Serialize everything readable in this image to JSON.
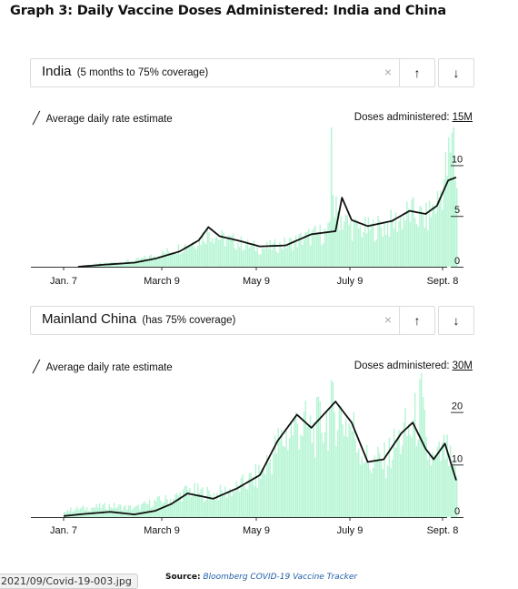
{
  "page_title": "Graph 3: Daily Vaccine Doses Administered: India and China",
  "controls": {
    "clear_icon": "×",
    "up_icon": "🡑",
    "down_icon": "🡓",
    "up_glyph": "↑",
    "down_glyph": "↓"
  },
  "colors": {
    "bar": "#b6f5d4",
    "line": "#111111",
    "axis": "#333333"
  },
  "panels": [
    {
      "country": "India",
      "note": "(5 months to 75% coverage)",
      "legend": "Average daily rate estimate",
      "doses_label": "Doses administered:",
      "doses_unit": "15M"
    },
    {
      "country": "Mainland China",
      "note": "(has 75% coverage)",
      "legend": "Average daily rate estimate",
      "doses_label": "Doses administered:",
      "doses_unit": "30M"
    }
  ],
  "chart_data": [
    {
      "type": "bar",
      "series": [
        {
          "name": "Doses administered",
          "kind": "bar"
        },
        {
          "name": "Average daily rate estimate",
          "kind": "line"
        }
      ],
      "x_ticks": [
        "Jan. 7",
        "March 9",
        "May 9",
        "July 9",
        "Sept. 8"
      ],
      "y_ticks": [
        "0",
        "5",
        "10"
      ],
      "ylim": [
        0,
        13
      ],
      "x_range": [
        "2021-01-07",
        "2021-09-08"
      ],
      "keypoints_line": [
        [
          "2021-01-16",
          0
        ],
        [
          "2021-02-01",
          0.2
        ],
        [
          "2021-02-20",
          0.4
        ],
        [
          "2021-03-05",
          0.8
        ],
        [
          "2021-03-20",
          1.5
        ],
        [
          "2021-04-01",
          2.6
        ],
        [
          "2021-04-07",
          3.9
        ],
        [
          "2021-04-14",
          3.0
        ],
        [
          "2021-04-25",
          2.6
        ],
        [
          "2021-05-09",
          2.0
        ],
        [
          "2021-05-25",
          2.1
        ],
        [
          "2021-06-10",
          3.2
        ],
        [
          "2021-06-25",
          3.5
        ],
        [
          "2021-06-29",
          6.8
        ],
        [
          "2021-07-05",
          4.6
        ],
        [
          "2021-07-15",
          4.0
        ],
        [
          "2021-07-30",
          4.5
        ],
        [
          "2021-08-10",
          5.5
        ],
        [
          "2021-08-20",
          5.2
        ],
        [
          "2021-08-27",
          6.0
        ],
        [
          "2021-09-03",
          8.5
        ],
        [
          "2021-09-08",
          8.8
        ]
      ],
      "keypoints_bars": [
        [
          "2021-01-16",
          0.1
        ],
        [
          "2021-02-01",
          0.4
        ],
        [
          "2021-02-20",
          0.7
        ],
        [
          "2021-03-05",
          1.3
        ],
        [
          "2021-03-20",
          2.2
        ],
        [
          "2021-04-01",
          3.2
        ],
        [
          "2021-04-07",
          4.2
        ],
        [
          "2021-04-14",
          3.3
        ],
        [
          "2021-04-25",
          2.8
        ],
        [
          "2021-05-09",
          2.1
        ],
        [
          "2021-05-25",
          2.6
        ],
        [
          "2021-06-10",
          3.6
        ],
        [
          "2021-06-21",
          4.0
        ],
        [
          "2021-06-22",
          13.7
        ],
        [
          "2021-06-24",
          6.5
        ],
        [
          "2021-07-05",
          4.5
        ],
        [
          "2021-07-15",
          4.3
        ],
        [
          "2021-07-30",
          5.0
        ],
        [
          "2021-08-10",
          6.2
        ],
        [
          "2021-08-20",
          5.5
        ],
        [
          "2021-08-27",
          7.5
        ],
        [
          "2021-09-06",
          14.0
        ],
        [
          "2021-09-08",
          8.5
        ]
      ]
    },
    {
      "type": "bar",
      "series": [
        {
          "name": "Doses administered",
          "kind": "bar"
        },
        {
          "name": "Average daily rate estimate",
          "kind": "line"
        }
      ],
      "x_ticks": [
        "Jan. 7",
        "March 9",
        "May 9",
        "July 9",
        "Sept. 8"
      ],
      "y_ticks": [
        "0",
        "10",
        "20"
      ],
      "ylim": [
        0,
        26
      ],
      "x_range": [
        "2021-01-07",
        "2021-09-08"
      ],
      "keypoints_line": [
        [
          "2021-01-07",
          0.2
        ],
        [
          "2021-01-20",
          0.6
        ],
        [
          "2021-02-05",
          1.0
        ],
        [
          "2021-02-20",
          0.5
        ],
        [
          "2021-03-05",
          1.2
        ],
        [
          "2021-03-15",
          2.5
        ],
        [
          "2021-03-25",
          4.5
        ],
        [
          "2021-04-10",
          3.5
        ],
        [
          "2021-04-25",
          5.5
        ],
        [
          "2021-05-09",
          8.0
        ],
        [
          "2021-05-20",
          14.5
        ],
        [
          "2021-06-01",
          19.5
        ],
        [
          "2021-06-10",
          17.0
        ],
        [
          "2021-06-25",
          22.0
        ],
        [
          "2021-07-05",
          18.0
        ],
        [
          "2021-07-15",
          10.5
        ],
        [
          "2021-07-25",
          11.0
        ],
        [
          "2021-08-05",
          16.0
        ],
        [
          "2021-08-12",
          18.0
        ],
        [
          "2021-08-20",
          13.0
        ],
        [
          "2021-08-25",
          11.0
        ],
        [
          "2021-09-01",
          14.0
        ],
        [
          "2021-09-08",
          7.0
        ]
      ],
      "keypoints_bars": [
        [
          "2021-01-07",
          1.5
        ],
        [
          "2021-01-20",
          2.0
        ],
        [
          "2021-02-05",
          2.5
        ],
        [
          "2021-02-20",
          2.0
        ],
        [
          "2021-03-05",
          3.5
        ],
        [
          "2021-03-15",
          4.0
        ],
        [
          "2021-03-25",
          6.0
        ],
        [
          "2021-04-10",
          5.0
        ],
        [
          "2021-04-25",
          6.5
        ],
        [
          "2021-05-09",
          9.5
        ],
        [
          "2021-05-20",
          16.0
        ],
        [
          "2021-06-01",
          21.0
        ],
        [
          "2021-06-10",
          19.0
        ],
        [
          "2021-06-25",
          24.0
        ],
        [
          "2021-07-05",
          20.0
        ],
        [
          "2021-07-15",
          12.0
        ],
        [
          "2021-07-25",
          12.5
        ],
        [
          "2021-08-05",
          18.0
        ],
        [
          "2021-08-12",
          20.0
        ],
        [
          "2021-08-17",
          25.5
        ],
        [
          "2021-08-20",
          15.0
        ],
        [
          "2021-08-25",
          12.0
        ],
        [
          "2021-09-01",
          15.0
        ],
        [
          "2021-09-08",
          8.0
        ]
      ]
    }
  ],
  "source": {
    "label": "Source:",
    "text": "Bloomberg COVID-19 Vaccine Tracker"
  },
  "file_tab": "2021/09/Covid-19-003.jpg"
}
